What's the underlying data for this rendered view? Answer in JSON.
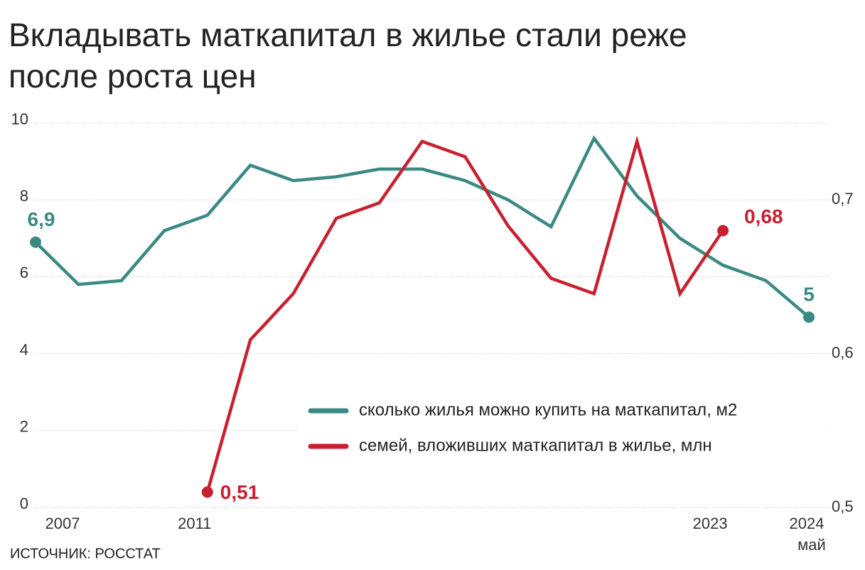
{
  "chart_data": {
    "type": "line",
    "title": [
      "Вкладывать маткапитал в жилье стали реже",
      "после роста цен"
    ],
    "source": "ИСТОЧНИК: РОССТАТ",
    "categories": [
      "2007",
      null,
      null,
      null,
      "2011",
      null,
      null,
      null,
      null,
      null,
      null,
      null,
      null,
      null,
      null,
      null,
      "2023",
      null,
      "2024"
    ],
    "x_note": "май",
    "ylim": [
      0,
      10
    ],
    "yticks": [
      0,
      2,
      4,
      6,
      8,
      10
    ],
    "y2lim": [
      0.5,
      0.75
    ],
    "y2ticks": [
      {
        "value": 0.5,
        "label": "0,5"
      },
      {
        "value": 0.6,
        "label": "0,6"
      },
      {
        "value": 0.7,
        "label": "0,7"
      }
    ],
    "grid": true,
    "series": [
      {
        "name": "сколько жилья можно купить на маткапитал, м2",
        "color": "#3a8a83",
        "values": [
          6.9,
          5.8,
          5.9,
          7.2,
          7.6,
          8.9,
          8.5,
          8.6,
          8.8,
          8.8,
          8.5,
          8.0,
          7.3,
          9.6,
          8.1,
          7.0,
          6.3,
          5.9,
          4.95
        ],
        "value_labels": [
          "6,9",
          null,
          null,
          null,
          null,
          null,
          null,
          null,
          null,
          null,
          null,
          null,
          null,
          null,
          null,
          null,
          null,
          null,
          "5"
        ]
      },
      {
        "name": "семей, вложивших маткапитал в жилье, млн",
        "color": "#c8202f",
        "axis": "y2",
        "values": [
          null,
          null,
          null,
          null,
          0.51,
          0.609,
          0.639,
          0.688,
          0.698,
          0.738,
          0.728,
          0.683,
          0.649,
          0.639,
          0.738,
          0.639,
          0.68,
          null,
          null
        ],
        "value_labels": [
          null,
          null,
          null,
          null,
          "0,51",
          null,
          null,
          null,
          null,
          null,
          null,
          null,
          null,
          null,
          null,
          null,
          "0,68",
          null,
          null
        ]
      }
    ]
  }
}
